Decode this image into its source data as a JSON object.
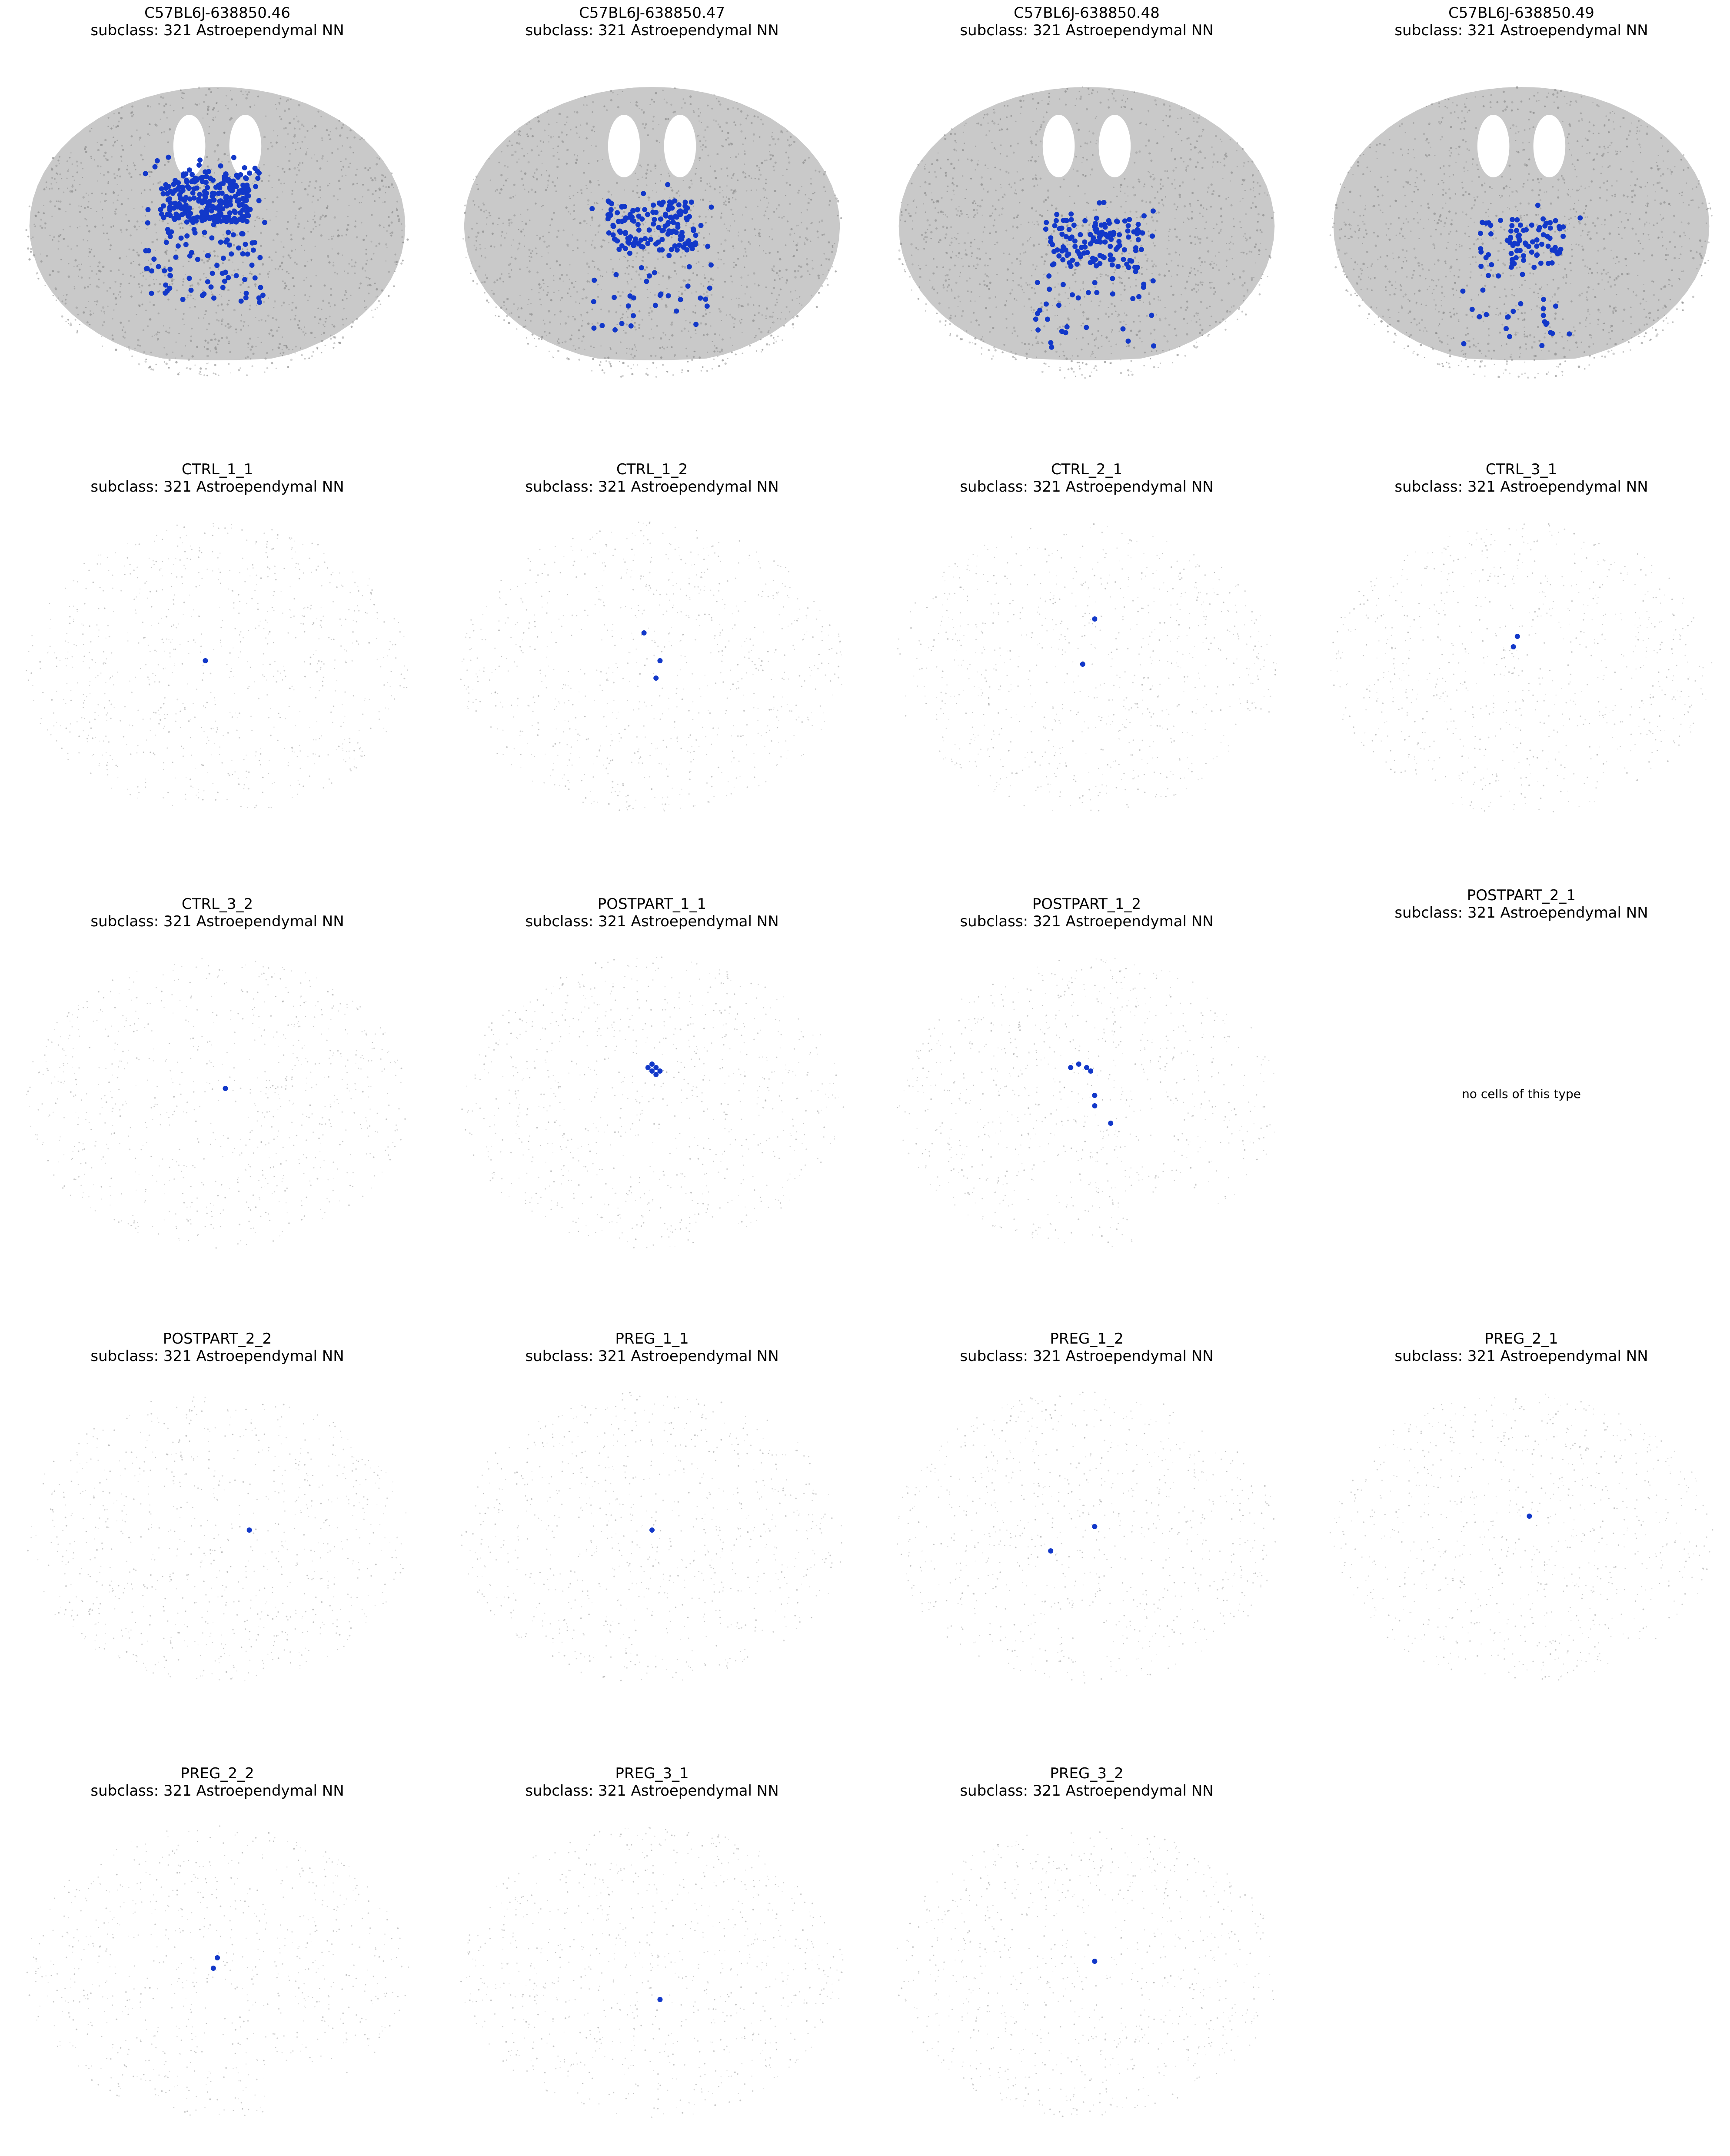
{
  "figure": {
    "background": "#ffffff",
    "grid": false,
    "axes_visible": false,
    "colors": {
      "background_cells": "#8c8c8c",
      "highlighted_cells": "#1238c9"
    }
  },
  "chart_data": [
    {
      "type": "scatter",
      "section": "C57BL6J-638850.46",
      "subtitle": "subclass: 321 Astroependymal NN",
      "background_density": "dense",
      "shape": "coronal-ventricle",
      "highlight_count_estimate": 350,
      "highlight_x": 0.47,
      "highlight_y": 0.42
    },
    {
      "type": "scatter",
      "section": "C57BL6J-638850.47",
      "subtitle": "subclass: 321 Astroependymal NN",
      "background_density": "dense",
      "shape": "coronal-ventricle",
      "highlight_count_estimate": 180,
      "highlight_x": 0.5,
      "highlight_y": 0.5
    },
    {
      "type": "scatter",
      "section": "C57BL6J-638850.48",
      "subtitle": "subclass: 321 Astroependymal NN",
      "background_density": "dense",
      "shape": "coronal-ventricle",
      "highlight_count_estimate": 170,
      "highlight_x": 0.52,
      "highlight_y": 0.55
    },
    {
      "type": "scatter",
      "section": "C57BL6J-638850.49",
      "subtitle": "subclass: 321 Astroependymal NN",
      "background_density": "dense",
      "shape": "coronal-ventricle",
      "highlight_count_estimate": 110,
      "highlight_x": 0.5,
      "highlight_y": 0.55
    },
    {
      "type": "scatter",
      "section": "CTRL_1_1",
      "subtitle": "subclass: 321 Astroependymal NN",
      "background_density": "sparse",
      "highlight_points": [
        [
          0.47,
          0.5
        ]
      ]
    },
    {
      "type": "scatter",
      "section": "CTRL_1_2",
      "subtitle": "subclass: 321 Astroependymal NN",
      "background_density": "sparse",
      "highlight_points": [
        [
          0.48,
          0.42
        ],
        [
          0.52,
          0.5
        ],
        [
          0.51,
          0.55
        ]
      ]
    },
    {
      "type": "scatter",
      "section": "CTRL_2_1",
      "subtitle": "subclass: 321 Astroependymal NN",
      "background_density": "sparse",
      "highlight_points": [
        [
          0.52,
          0.38
        ],
        [
          0.49,
          0.51
        ]
      ]
    },
    {
      "type": "scatter",
      "section": "CTRL_3_1",
      "subtitle": "subclass: 321 Astroependymal NN",
      "background_density": "sparse",
      "highlight_points": [
        [
          0.49,
          0.43
        ],
        [
          0.48,
          0.46
        ]
      ]
    },
    {
      "type": "scatter",
      "section": "CTRL_3_2",
      "subtitle": "subclass: 321 Astroependymal NN",
      "background_density": "sparse",
      "highlight_points": [
        [
          0.52,
          0.48
        ]
      ]
    },
    {
      "type": "scatter",
      "section": "POSTPART_1_1",
      "subtitle": "subclass: 321 Astroependymal NN",
      "background_density": "sparse",
      "highlight_points": [
        [
          0.49,
          0.42
        ],
        [
          0.5,
          0.41
        ],
        [
          0.51,
          0.42
        ],
        [
          0.5,
          0.43
        ],
        [
          0.52,
          0.43
        ],
        [
          0.51,
          0.44
        ]
      ]
    },
    {
      "type": "scatter",
      "section": "POSTPART_1_2",
      "subtitle": "subclass: 321 Astroependymal NN",
      "background_density": "sparse",
      "highlight_points": [
        [
          0.46,
          0.42
        ],
        [
          0.48,
          0.41
        ],
        [
          0.5,
          0.42
        ],
        [
          0.51,
          0.43
        ],
        [
          0.52,
          0.5
        ],
        [
          0.52,
          0.53
        ],
        [
          0.56,
          0.58
        ]
      ]
    },
    {
      "type": "scatter",
      "section": "POSTPART_2_1",
      "subtitle": "subclass: 321 Astroependymal NN",
      "empty": true,
      "empty_message": "no cells of this type"
    },
    {
      "type": "scatter",
      "section": "POSTPART_2_2",
      "subtitle": "subclass: 321 Astroependymal NN",
      "background_density": "sparse",
      "highlight_points": [
        [
          0.58,
          0.5
        ]
      ]
    },
    {
      "type": "scatter",
      "section": "PREG_1_1",
      "subtitle": "subclass: 321 Astroependymal NN",
      "background_density": "sparse",
      "highlight_points": [
        [
          0.5,
          0.5
        ]
      ]
    },
    {
      "type": "scatter",
      "section": "PREG_1_2",
      "subtitle": "subclass: 321 Astroependymal NN",
      "background_density": "sparse",
      "highlight_points": [
        [
          0.52,
          0.49
        ],
        [
          0.41,
          0.56
        ]
      ]
    },
    {
      "type": "scatter",
      "section": "PREG_2_1",
      "subtitle": "subclass: 321 Astroependymal NN",
      "background_density": "sparse",
      "highlight_points": [
        [
          0.52,
          0.46
        ]
      ]
    },
    {
      "type": "scatter",
      "section": "PREG_2_2",
      "subtitle": "subclass: 321 Astroependymal NN",
      "background_density": "sparse",
      "highlight_points": [
        [
          0.5,
          0.48
        ],
        [
          0.49,
          0.51
        ]
      ]
    },
    {
      "type": "scatter",
      "section": "PREG_3_1",
      "subtitle": "subclass: 321 Astroependymal NN",
      "background_density": "sparse",
      "highlight_points": [
        [
          0.52,
          0.6
        ]
      ]
    },
    {
      "type": "scatter",
      "section": "PREG_3_2",
      "subtitle": "subclass: 321 Astroependymal NN",
      "background_density": "sparse",
      "highlight_points": [
        [
          0.52,
          0.49
        ]
      ]
    }
  ]
}
